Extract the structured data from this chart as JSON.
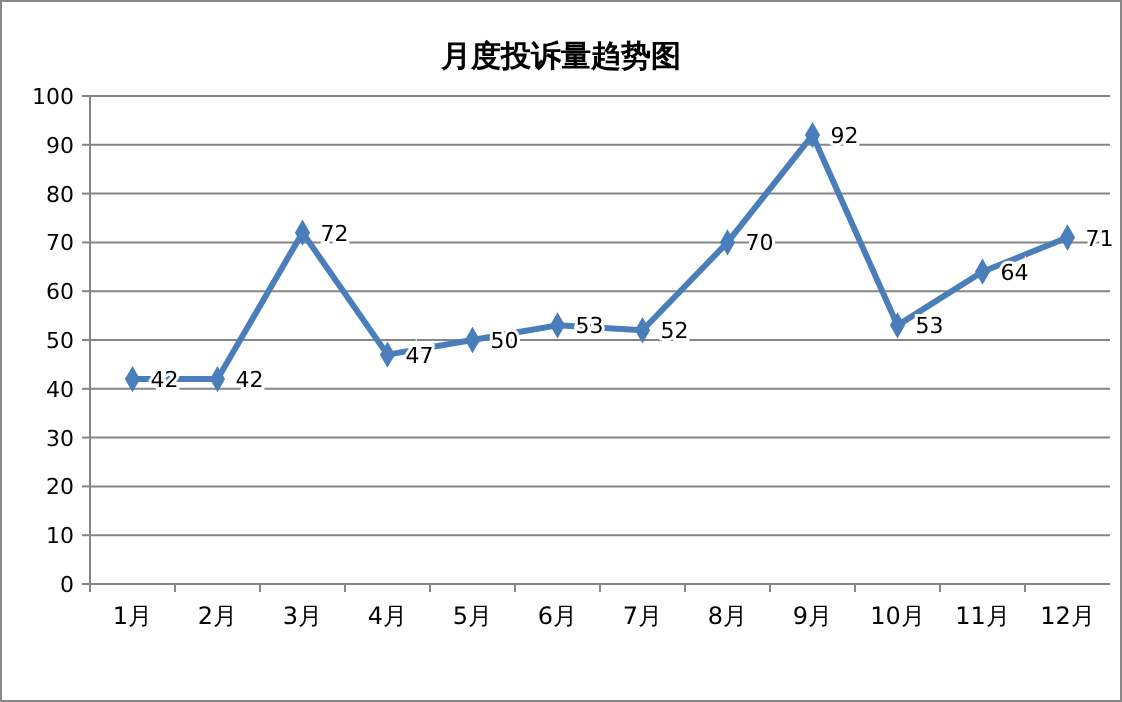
{
  "chart_data": {
    "type": "line",
    "title": "月度投诉量趋势图",
    "categories": [
      "1月",
      "2月",
      "3月",
      "4月",
      "5月",
      "6月",
      "7月",
      "8月",
      "9月",
      "10月",
      "11月",
      "12月"
    ],
    "series": [
      {
        "color": "#4a7ebb",
        "values": [
          42,
          42,
          72,
          47,
          50,
          53,
          52,
          70,
          92,
          53,
          64,
          71
        ]
      }
    ],
    "ylim": [
      0,
      100
    ],
    "yticks": [
      0,
      10,
      20,
      30,
      40,
      50,
      60,
      70,
      80,
      90,
      100
    ],
    "grid": "y",
    "marker": "diamond",
    "line_style": "solid",
    "data_labels": true
  }
}
